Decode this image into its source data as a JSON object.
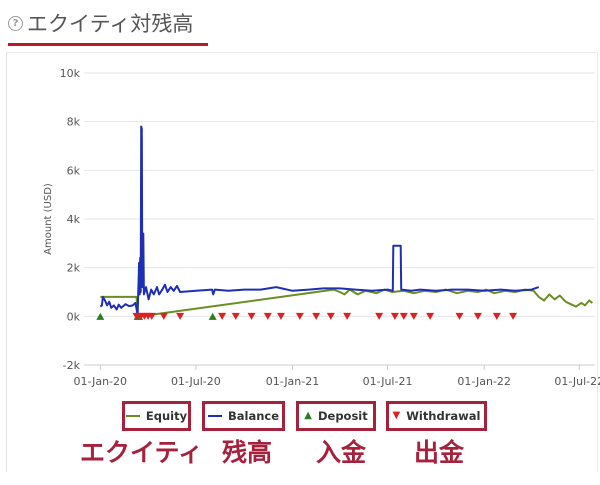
{
  "header": {
    "help_icon": "?",
    "title": "エクイティ対残高"
  },
  "colors": {
    "equity": "#6b8e23",
    "balance": "#1f2fb4",
    "deposit": "#2e7d1e",
    "withdrawal": "#e02020",
    "accent": "#a6213c"
  },
  "chart_data": {
    "type": "line",
    "ylabel": "Amount (USD)",
    "ylim": [
      -2000,
      10000
    ],
    "y_ticks": [
      {
        "value": 10000,
        "label": "10k"
      },
      {
        "value": 8000,
        "label": "8k"
      },
      {
        "value": 6000,
        "label": "6k"
      },
      {
        "value": 4000,
        "label": "4k"
      },
      {
        "value": 2000,
        "label": "2k"
      },
      {
        "value": 0,
        "label": "0k"
      },
      {
        "value": -2000,
        "label": "-2k"
      }
    ],
    "x_range": [
      "2019-12-01",
      "2022-07-31"
    ],
    "x_ticks": [
      {
        "date": "2020-01-01",
        "label": "01-Jan-20"
      },
      {
        "date": "2020-07-01",
        "label": "01-Jul-20"
      },
      {
        "date": "2021-01-01",
        "label": "01-Jan-21"
      },
      {
        "date": "2021-07-01",
        "label": "01-Jul-21"
      },
      {
        "date": "2022-01-01",
        "label": "01-Jan-22"
      },
      {
        "date": "2022-07-01",
        "label": "01-Jul-22"
      }
    ],
    "grid": "horizontal",
    "series": [
      {
        "name": "Equity",
        "key": "equity",
        "points": [
          [
            "2020-01-01",
            800
          ],
          [
            "2020-01-03",
            800
          ],
          [
            "2020-03-10",
            800
          ],
          [
            "2020-03-13",
            0
          ],
          [
            "2020-03-18",
            0
          ],
          [
            "2021-03-20",
            1100
          ],
          [
            "2021-04-01",
            1000
          ],
          [
            "2021-04-10",
            900
          ],
          [
            "2021-04-20",
            1100
          ],
          [
            "2021-05-05",
            900
          ],
          [
            "2021-05-20",
            1050
          ],
          [
            "2021-06-10",
            950
          ],
          [
            "2021-06-25",
            1100
          ],
          [
            "2021-07-10",
            1000
          ],
          [
            "2021-08-01",
            1050
          ],
          [
            "2021-08-20",
            950
          ],
          [
            "2021-09-10",
            1050
          ],
          [
            "2021-10-01",
            1000
          ],
          [
            "2021-10-20",
            1100
          ],
          [
            "2021-11-10",
            950
          ],
          [
            "2021-12-01",
            1050
          ],
          [
            "2021-12-20",
            1000
          ],
          [
            "2022-01-05",
            1100
          ],
          [
            "2022-01-20",
            950
          ],
          [
            "2022-02-10",
            1050
          ],
          [
            "2022-03-01",
            1000
          ],
          [
            "2022-03-20",
            1100
          ],
          [
            "2022-04-05",
            1050
          ],
          [
            "2022-04-15",
            800
          ],
          [
            "2022-04-25",
            650
          ],
          [
            "2022-05-05",
            900
          ],
          [
            "2022-05-15",
            700
          ],
          [
            "2022-05-25",
            850
          ],
          [
            "2022-06-05",
            600
          ],
          [
            "2022-06-15",
            500
          ],
          [
            "2022-06-25",
            400
          ],
          [
            "2022-07-05",
            550
          ],
          [
            "2022-07-12",
            450
          ],
          [
            "2022-07-20",
            650
          ],
          [
            "2022-07-26",
            550
          ]
        ]
      },
      {
        "name": "Balance",
        "key": "balance",
        "points": [
          [
            "2020-01-01",
            400
          ],
          [
            "2020-01-04",
            450
          ],
          [
            "2020-01-06",
            800
          ],
          [
            "2020-01-10",
            650
          ],
          [
            "2020-01-14",
            450
          ],
          [
            "2020-01-18",
            600
          ],
          [
            "2020-01-22",
            350
          ],
          [
            "2020-01-27",
            450
          ],
          [
            "2020-02-01",
            280
          ],
          [
            "2020-02-05",
            480
          ],
          [
            "2020-02-10",
            350
          ],
          [
            "2020-02-18",
            500
          ],
          [
            "2020-02-25",
            420
          ],
          [
            "2020-03-03",
            450
          ],
          [
            "2020-03-08",
            550
          ],
          [
            "2020-03-12",
            50
          ],
          [
            "2020-03-15",
            2200
          ],
          [
            "2020-03-16",
            900
          ],
          [
            "2020-03-17",
            2400
          ],
          [
            "2020-03-18",
            1000
          ],
          [
            "2020-03-19",
            7800
          ],
          [
            "2020-03-20",
            7700
          ],
          [
            "2020-03-21",
            1200
          ],
          [
            "2020-03-23",
            3400
          ],
          [
            "2020-03-24",
            900
          ],
          [
            "2020-03-28",
            1200
          ],
          [
            "2020-04-02",
            700
          ],
          [
            "2020-04-07",
            1100
          ],
          [
            "2020-04-12",
            900
          ],
          [
            "2020-04-18",
            1200
          ],
          [
            "2020-04-22",
            900
          ],
          [
            "2020-04-28",
            1100
          ],
          [
            "2020-05-03",
            1300
          ],
          [
            "2020-05-08",
            1000
          ],
          [
            "2020-05-14",
            1200
          ],
          [
            "2020-05-20",
            1050
          ],
          [
            "2020-05-26",
            1250
          ],
          [
            "2020-06-01",
            1000
          ],
          [
            "2020-07-01",
            1050
          ],
          [
            "2020-08-01",
            1100
          ],
          [
            "2020-08-03",
            900
          ],
          [
            "2020-08-06",
            1100
          ],
          [
            "2020-09-01",
            1050
          ],
          [
            "2020-10-01",
            1100
          ],
          [
            "2020-11-01",
            1100
          ],
          [
            "2020-12-01",
            1200
          ],
          [
            "2021-01-01",
            1050
          ],
          [
            "2021-02-01",
            1100
          ],
          [
            "2021-03-01",
            1150
          ],
          [
            "2021-04-01",
            1150
          ],
          [
            "2021-05-01",
            1100
          ],
          [
            "2021-06-01",
            1050
          ],
          [
            "2021-07-01",
            1100
          ],
          [
            "2021-07-11",
            1050
          ],
          [
            "2021-07-12",
            2900
          ],
          [
            "2021-07-26",
            2900
          ],
          [
            "2021-07-27",
            1100
          ],
          [
            "2021-08-15",
            1050
          ],
          [
            "2021-09-01",
            1100
          ],
          [
            "2021-10-01",
            1050
          ],
          [
            "2021-11-01",
            1100
          ],
          [
            "2021-12-01",
            1100
          ],
          [
            "2022-01-01",
            1050
          ],
          [
            "2022-02-01",
            1100
          ],
          [
            "2022-03-01",
            1050
          ],
          [
            "2022-04-01",
            1100
          ],
          [
            "2022-04-15",
            1200
          ]
        ]
      }
    ],
    "deposits": [
      "2020-01-01",
      "2020-03-12",
      "2020-03-15",
      "2020-08-02"
    ],
    "withdrawals": [
      "2020-03-10",
      "2020-03-18",
      "2020-03-25",
      "2020-04-01",
      "2020-04-08",
      "2020-05-01",
      "2020-06-01",
      "2020-08-20",
      "2020-09-15",
      "2020-10-15",
      "2020-11-15",
      "2020-12-10",
      "2021-01-15",
      "2021-02-15",
      "2021-03-15",
      "2021-04-15",
      "2021-06-15",
      "2021-07-15",
      "2021-08-01",
      "2021-08-20",
      "2021-09-20",
      "2021-11-15",
      "2021-12-20",
      "2022-01-25",
      "2022-02-25"
    ]
  },
  "legend": [
    {
      "key": "equity",
      "label": "Equity",
      "symbol": "line"
    },
    {
      "key": "balance",
      "label": "Balance",
      "symbol": "line"
    },
    {
      "key": "deposit",
      "label": "Deposit",
      "symbol": "▲"
    },
    {
      "key": "withdrawal",
      "label": "Withdrawal",
      "symbol": "▼"
    }
  ],
  "annotations": [
    {
      "key": "equity",
      "label": "エクイティ"
    },
    {
      "key": "balance",
      "label": "残高"
    },
    {
      "key": "deposit",
      "label": "入金"
    },
    {
      "key": "withdrawal",
      "label": "出金"
    }
  ]
}
